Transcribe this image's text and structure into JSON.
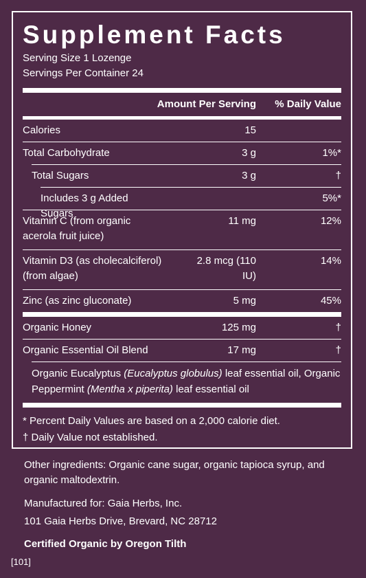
{
  "title": "Supplement Facts",
  "serving_size": "Serving Size 1 Lozenge",
  "servings_per_container": "Servings Per Container 24",
  "header": {
    "amount": "Amount Per Serving",
    "dv": "% Daily Value"
  },
  "rows": [
    {
      "label": "Calories",
      "amount": "15",
      "dv": ""
    },
    {
      "label": "Total Carbohydrate",
      "amount": "3 g",
      "dv": "1%*"
    },
    {
      "label": "Total Sugars",
      "amount": "3 g",
      "dv": "†"
    },
    {
      "label": "Includes 3 g Added Sugars",
      "amount": "",
      "dv": "5%*"
    },
    {
      "label": "Vitamin C (from organic acerola fruit juice)",
      "amount": "11 mg",
      "dv": "12%"
    },
    {
      "label": "Vitamin D3 (as cholecalciferol) (from algae)",
      "amount": "2.8 mcg (110 IU)",
      "dv": "14%"
    },
    {
      "label": "Zinc (as zinc gluconate)",
      "amount": "5 mg",
      "dv": "45%"
    },
    {
      "label": "Organic Honey",
      "amount": "125 mg",
      "dv": "†"
    },
    {
      "label": "Organic Essential Oil Blend",
      "amount": "17 mg",
      "dv": "†"
    }
  ],
  "blend": {
    "part1": "Organic Eucalyptus ",
    "latin1": "(Eucalyptus globulus)",
    "part2": " leaf essential oil, Organic Peppermint ",
    "latin2": "(Mentha x piperita)",
    "part3": " leaf essential oil"
  },
  "footnotes": {
    "percent": "*  Percent Daily Values are based on a 2,000 calorie diet.",
    "dagger": "† Daily Value not established."
  },
  "other_ingredients": "Other ingredients: Organic cane sugar, organic tapioca syrup, and organic maltodextrin.",
  "manufacturer": {
    "line1": "Manufactured for: Gaia Herbs, Inc.",
    "line2": "101 Gaia Herbs Drive, Brevard, NC 28712"
  },
  "certification": "Certified Organic by Oregon Tilth",
  "code": "[101]"
}
